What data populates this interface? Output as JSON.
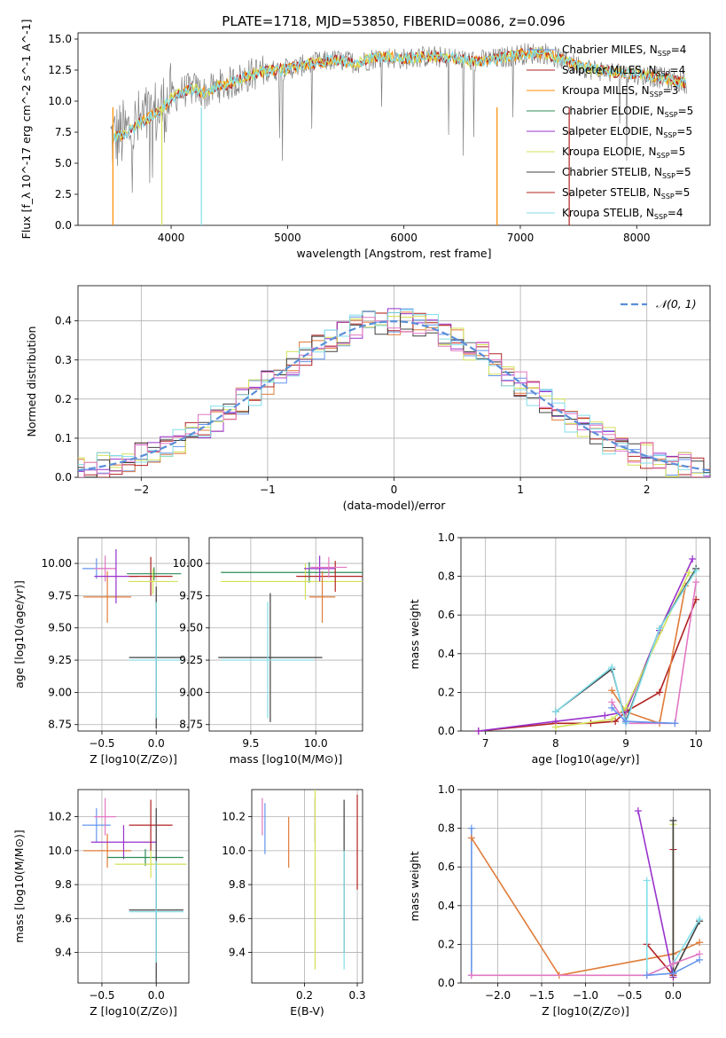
{
  "figure": {
    "title": "PLATE=1718, MJD=53850, FIBERID=0086, z=0.096"
  },
  "chart_data": [
    {
      "id": "spectrum",
      "type": "line",
      "xlabel": "wavelength [Angstrom, rest frame]",
      "ylabel": "Flux [f_λ 10^-17 erg cm^-2 s^-1 A^-1]",
      "xlim": [
        3200,
        8630
      ],
      "ylim": [
        0,
        15.5
      ],
      "xticks": [
        4000,
        5000,
        6000,
        7000,
        8000
      ],
      "yticks": [
        0.0,
        2.5,
        5.0,
        7.5,
        10.0,
        12.5,
        15.0
      ],
      "grid": false,
      "legend_position": "right",
      "data_series": {
        "name": "",
        "color": "#808080",
        "x": [
          3500,
          3600,
          3700,
          3800,
          3900,
          4000,
          4100,
          4200,
          4300,
          4400,
          4500,
          4600,
          4700,
          4800,
          5000,
          5200,
          5400,
          5600,
          5800,
          6000,
          6200,
          6400,
          6600,
          6800,
          7000,
          7200,
          7400,
          7600,
          7800,
          8000,
          8200,
          8400
        ],
        "y": [
          7.0,
          7.3,
          8.0,
          8.6,
          9.2,
          10.2,
          10.8,
          11.0,
          10.6,
          11.2,
          11.4,
          11.8,
          12.2,
          12.4,
          12.6,
          13.0,
          13.3,
          13.1,
          13.6,
          13.4,
          13.6,
          13.5,
          13.2,
          13.4,
          13.8,
          13.9,
          13.2,
          12.6,
          12.3,
          12.2,
          11.9,
          11.5
        ]
      },
      "series": [
        {
          "name": "Chabrier MILES, N_SSP=4",
          "color": "#6495ed"
        },
        {
          "name": "Salpeter MILES, N_SSP=4",
          "color": "#b22222"
        },
        {
          "name": "Kroupa MILES, N_SSP=3",
          "color": "#ff8c00"
        },
        {
          "name": "Chabrier ELODIE, N_SSP=5",
          "color": "#2e8b57"
        },
        {
          "name": "Salpeter ELODIE, N_SSP=5",
          "color": "#9932cc"
        },
        {
          "name": "Kroupa ELODIE, N_SSP=5",
          "color": "#d4e157"
        },
        {
          "name": "Chabrier STELIB, N_SSP=5",
          "color": "#404040"
        },
        {
          "name": "Salpeter STELIB, N_SSP=5",
          "color": "#b22222"
        },
        {
          "name": "Kroupa STELIB, N_SSP=4",
          "color": "#80deea"
        }
      ]
    },
    {
      "id": "residuals",
      "type": "histogram",
      "xlabel": "(data-model)/error",
      "ylabel": "Normed distribution",
      "xlim": [
        -2.5,
        2.5
      ],
      "ylim": [
        0,
        0.49
      ],
      "xticks": [
        -2,
        -1,
        0,
        1,
        2
      ],
      "yticks": [
        0.0,
        0.1,
        0.2,
        0.3,
        0.4
      ],
      "grid": true,
      "legend": [
        {
          "name": "N(0,1)",
          "style": "dashed",
          "color": "#5b8fd9"
        }
      ],
      "legend_position": "top-right",
      "bin_width": 0.1,
      "colors": [
        "#6495ed",
        "#e07b39",
        "#b22222",
        "#9932cc",
        "#d4e157",
        "#404040",
        "#80deea",
        "#e377c2"
      ]
    },
    {
      "id": "age_vs_Z",
      "type": "errorbar",
      "xlabel": "Z [log10(Z/Z⊙)]",
      "ylabel": "age [log10(age/yr)]",
      "xlim": [
        -0.72,
        0.3
      ],
      "ylim": [
        8.7,
        10.2
      ],
      "xticks": [
        -0.5,
        0.0
      ],
      "yticks": [
        8.75,
        9.0,
        9.25,
        9.5,
        9.75,
        10.0
      ],
      "grid": true,
      "points": [
        {
          "x": -0.55,
          "y": 9.96,
          "xerr": 0.13,
          "yerr": 0.08,
          "color": "#6495ed"
        },
        {
          "x": -0.47,
          "y": 9.96,
          "xerr": 0.1,
          "yerr": 0.1,
          "color": "#e377c2"
        },
        {
          "x": -0.45,
          "y": 9.74,
          "xerr": 0.22,
          "yerr": 0.2,
          "color": "#e07b39"
        },
        {
          "x": -0.37,
          "y": 9.9,
          "xerr": 0.2,
          "yerr": 0.21,
          "color": "#9932cc"
        },
        {
          "x": -0.05,
          "y": 9.9,
          "xerr": 0.2,
          "yerr": 0.15,
          "color": "#b22222"
        },
        {
          "x": -0.02,
          "y": 9.92,
          "xerr": 0.25,
          "yerr": 0.05,
          "color": "#2e8b57"
        },
        {
          "x": -0.03,
          "y": 9.86,
          "xerr": 0.23,
          "yerr": 0.1,
          "color": "#d4e157"
        },
        {
          "x": 0.0,
          "y": 9.27,
          "xerr": 0.25,
          "yerr": 0.55,
          "color": "#404040"
        },
        {
          "x": 0.0,
          "y": 9.25,
          "xerr": 0.25,
          "yerr": 0.45,
          "color": "#80deea"
        }
      ]
    },
    {
      "id": "age_vs_mass",
      "type": "errorbar",
      "xlabel": "mass [log10(M/M⊙)]",
      "ylabel": "",
      "xlim": [
        9.18,
        10.36
      ],
      "ylim": [
        8.7,
        10.2
      ],
      "xticks": [
        9.5,
        10.0
      ],
      "yticks": [
        8.75,
        9.0,
        9.25,
        9.5,
        9.75,
        10.0
      ],
      "grid": true,
      "points": [
        {
          "x": 9.95,
          "y": 9.93,
          "xerr": 0.68,
          "yerr": 0.08,
          "color": "#2e8b57"
        },
        {
          "x": 9.92,
          "y": 9.86,
          "xerr": 0.65,
          "yerr": 0.14,
          "color": "#d4e157"
        },
        {
          "x": 10.15,
          "y": 9.9,
          "xerr": 0.3,
          "yerr": 0.12,
          "color": "#b22222"
        },
        {
          "x": 10.05,
          "y": 9.74,
          "xerr": 0.1,
          "yerr": 0.2,
          "color": "#e07b39"
        },
        {
          "x": 10.03,
          "y": 9.96,
          "xerr": 0.12,
          "yerr": 0.1,
          "color": "#9932cc"
        },
        {
          "x": 10.1,
          "y": 9.97,
          "xerr": 0.14,
          "yerr": 0.08,
          "color": "#e377c2"
        },
        {
          "x": 9.65,
          "y": 9.27,
          "xerr": 0.4,
          "yerr": 0.5,
          "color": "#404040"
        },
        {
          "x": 9.63,
          "y": 9.25,
          "xerr": 0.36,
          "yerr": 0.45,
          "color": "#80deea"
        }
      ]
    },
    {
      "id": "massweight_vs_age",
      "type": "line",
      "xlabel": "age [log10(age/yr)]",
      "ylabel": "mass weight",
      "xlim": [
        6.65,
        10.2
      ],
      "ylim": [
        0,
        1.0
      ],
      "xticks": [
        7,
        8,
        9,
        10
      ],
      "yticks": [
        0.0,
        0.2,
        0.4,
        0.6,
        0.8,
        1.0
      ],
      "grid": true,
      "series": [
        {
          "color": "#b22222",
          "x": [
            6.9,
            8.0,
            8.5,
            8.85,
            9.0,
            9.48,
            10.0
          ],
          "y": [
            0.0,
            0.04,
            0.04,
            0.05,
            0.1,
            0.2,
            0.68
          ]
        },
        {
          "color": "#e07b39",
          "x": [
            8.8,
            9.0,
            9.48,
            9.85
          ],
          "y": [
            0.21,
            0.1,
            0.04,
            0.75
          ]
        },
        {
          "color": "#9932cc",
          "x": [
            6.9,
            8.0,
            8.7,
            9.0,
            9.48,
            9.95
          ],
          "y": [
            0.0,
            0.05,
            0.08,
            0.1,
            0.52,
            0.89
          ]
        },
        {
          "color": "#d4e157",
          "x": [
            8.0,
            8.8,
            9.0,
            9.9
          ],
          "y": [
            0.02,
            0.06,
            0.12,
            0.82
          ]
        },
        {
          "color": "#404040",
          "x": [
            8.0,
            8.8,
            9.0,
            9.48,
            10.0
          ],
          "y": [
            0.1,
            0.32,
            0.05,
            0.53,
            0.84
          ]
        },
        {
          "color": "#e377c2",
          "x": [
            8.8,
            9.0,
            9.7,
            10.0
          ],
          "y": [
            0.15,
            0.04,
            0.04,
            0.77
          ]
        },
        {
          "color": "#80deea",
          "x": [
            8.0,
            8.8,
            9.0,
            9.48,
            10.0
          ],
          "y": [
            0.1,
            0.33,
            0.04,
            0.53,
            0.83
          ]
        },
        {
          "color": "#6495ed",
          "x": [
            8.8,
            9.0,
            9.7
          ],
          "y": [
            0.12,
            0.05,
            0.04
          ]
        }
      ]
    },
    {
      "id": "mass_vs_Z",
      "type": "errorbar",
      "xlabel": "Z [log10(Z/Z⊙)]",
      "ylabel": "mass [log10(M/M⊙)]",
      "xlim": [
        -0.72,
        0.3
      ],
      "ylim": [
        9.22,
        10.36
      ],
      "xticks": [
        -0.5,
        0.0
      ],
      "yticks": [
        9.4,
        9.6,
        9.8,
        10.0,
        10.2
      ],
      "grid": true,
      "points": [
        {
          "x": -0.55,
          "y": 10.15,
          "xerr": 0.13,
          "yerr": 0.1,
          "color": "#6495ed"
        },
        {
          "x": -0.47,
          "y": 10.2,
          "xerr": 0.1,
          "yerr": 0.11,
          "color": "#e377c2"
        },
        {
          "x": -0.45,
          "y": 10.0,
          "xerr": 0.22,
          "yerr": 0.1,
          "color": "#e07b39"
        },
        {
          "x": -0.3,
          "y": 10.05,
          "xerr": 0.3,
          "yerr": 0.1,
          "color": "#9932cc"
        },
        {
          "x": -0.05,
          "y": 10.15,
          "xerr": 0.2,
          "yerr": 0.15,
          "color": "#b22222"
        },
        {
          "x": -0.1,
          "y": 9.96,
          "xerr": 0.35,
          "yerr": 0.05,
          "color": "#2e8b57"
        },
        {
          "x": -0.05,
          "y": 9.92,
          "xerr": 0.33,
          "yerr": 0.08,
          "color": "#d4e157"
        },
        {
          "x": 0.0,
          "y": 9.65,
          "xerr": 0.25,
          "yerr": 0.6,
          "color": "#404040"
        },
        {
          "x": 0.0,
          "y": 9.64,
          "xerr": 0.25,
          "yerr": 0.3,
          "color": "#80deea"
        }
      ]
    },
    {
      "id": "mass_vs_EBV",
      "type": "errorbar",
      "xlabel": "E(B-V)",
      "ylabel": "",
      "xlim": [
        0.1,
        0.31
      ],
      "ylim": [
        9.22,
        10.36
      ],
      "xticks": [
        0.2,
        0.3
      ],
      "yticks": [
        9.4,
        9.6,
        9.8,
        10.0,
        10.2
      ],
      "grid": true,
      "points": [
        {
          "x": 0.12,
          "y": 10.2,
          "xerr": 0,
          "yerr": 0.11,
          "color": "#e377c2"
        },
        {
          "x": 0.125,
          "y": 10.13,
          "xerr": 0,
          "yerr": 0.15,
          "color": "#6495ed"
        },
        {
          "x": 0.17,
          "y": 10.05,
          "xerr": 0,
          "yerr": 0.15,
          "color": "#e07b39"
        },
        {
          "x": 0.22,
          "y": 10.18,
          "xerr": 0,
          "yerr": 0.13,
          "color": "#9932cc"
        },
        {
          "x": 0.22,
          "y": 9.85,
          "xerr": 0,
          "yerr": 0.55,
          "color": "#d4e157"
        },
        {
          "x": 0.275,
          "y": 9.85,
          "xerr": 0,
          "yerr": 0.45,
          "color": "#404040"
        },
        {
          "x": 0.275,
          "y": 9.65,
          "xerr": 0,
          "yerr": 0.35,
          "color": "#80deea"
        },
        {
          "x": 0.3,
          "y": 10.05,
          "xerr": 0,
          "yerr": 0.28,
          "color": "#b22222"
        }
      ]
    },
    {
      "id": "massweight_vs_Z",
      "type": "line",
      "xlabel": "Z [log10(Z/Z⊙)]",
      "ylabel": "mass weight",
      "xlim": [
        -2.42,
        0.42
      ],
      "ylim": [
        0,
        1.0
      ],
      "xticks": [
        -2.0,
        -1.5,
        -1.0,
        -0.5,
        0.0
      ],
      "yticks": [
        0.0,
        0.2,
        0.4,
        0.6,
        0.8,
        1.0
      ],
      "grid": true,
      "series": [
        {
          "color": "#6495ed",
          "x": [
            -2.3,
            -2.3
          ],
          "y": [
            0.8,
            0.04
          ]
        },
        {
          "color": "#e07b39",
          "x": [
            -2.3,
            -1.3,
            0.0,
            0.3
          ],
          "y": [
            0.75,
            0.04,
            0.15,
            0.21
          ]
        },
        {
          "color": "#9932cc",
          "x": [
            -0.4,
            0.0
          ],
          "y": [
            0.89,
            0.03
          ]
        },
        {
          "color": "#b22222",
          "x": [
            -0.3,
            0.0,
            0.0
          ],
          "y": [
            0.2,
            0.04,
            0.69
          ]
        },
        {
          "color": "#d4e157",
          "x": [
            0.0,
            0.0
          ],
          "y": [
            0.1,
            0.82
          ]
        },
        {
          "color": "#404040",
          "x": [
            0.0,
            0.0,
            0.3
          ],
          "y": [
            0.84,
            0.05,
            0.32
          ]
        },
        {
          "color": "#80deea",
          "x": [
            -0.3,
            -0.3,
            0.0,
            0.3
          ],
          "y": [
            0.53,
            0.04,
            0.1,
            0.33
          ]
        },
        {
          "color": "#e377c2",
          "x": [
            -2.3,
            -0.3,
            0.0,
            0.3
          ],
          "y": [
            0.04,
            0.04,
            0.1,
            0.15
          ]
        },
        {
          "color": "#6495ed",
          "x": [
            -0.3,
            0.0,
            0.3
          ],
          "y": [
            0.04,
            0.05,
            0.12
          ]
        }
      ]
    }
  ]
}
